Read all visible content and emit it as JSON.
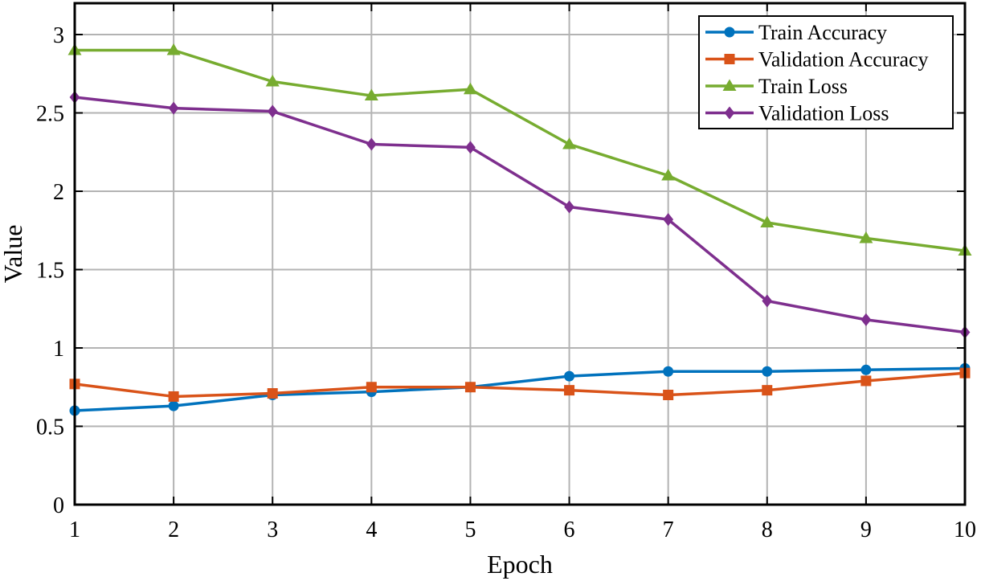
{
  "chart_data": {
    "type": "line",
    "title": "",
    "xlabel": "Epoch",
    "ylabel": "Value",
    "x": [
      1,
      2,
      3,
      4,
      5,
      6,
      7,
      8,
      9,
      10
    ],
    "xlim": [
      1,
      10
    ],
    "ylim": [
      0,
      3.2
    ],
    "xticks": [
      1,
      2,
      3,
      4,
      5,
      6,
      7,
      8,
      9,
      10
    ],
    "yticks": [
      0,
      0.5,
      1,
      1.5,
      2,
      2.5,
      3
    ],
    "ytick_labels": [
      "0",
      "0.5",
      "1",
      "1.5",
      "2",
      "2.5",
      "3"
    ],
    "grid": true,
    "legend_position": "top-right",
    "series": [
      {
        "name": "Train Accuracy",
        "color": "#0072BD",
        "marker": "circle",
        "values": [
          0.6,
          0.63,
          0.7,
          0.72,
          0.75,
          0.82,
          0.85,
          0.85,
          0.86,
          0.87
        ]
      },
      {
        "name": "Validation Accuracy",
        "color": "#D95319",
        "marker": "square",
        "values": [
          0.77,
          0.69,
          0.71,
          0.75,
          0.75,
          0.73,
          0.7,
          0.73,
          0.79,
          0.84
        ]
      },
      {
        "name": "Train Loss",
        "color": "#77AC30",
        "marker": "triangle",
        "values": [
          2.9,
          2.9,
          2.7,
          2.61,
          2.65,
          2.3,
          2.1,
          1.8,
          1.7,
          1.62
        ]
      },
      {
        "name": "Validation Loss",
        "color": "#7E2F8E",
        "marker": "diamond",
        "values": [
          2.6,
          2.53,
          2.51,
          2.3,
          2.28,
          1.9,
          1.82,
          1.3,
          1.18,
          1.1
        ]
      }
    ]
  }
}
